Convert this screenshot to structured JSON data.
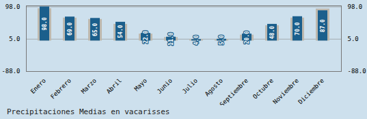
{
  "chart_data": {
    "type": "bar",
    "title": "Precipitaciones Medias en vacarisses",
    "categories": [
      "Enero",
      "Febrero",
      "Marzo",
      "Abril",
      "Mayo",
      "Junio",
      "Julio",
      "Agosto",
      "Septiembre",
      "Octubre",
      "Noviembre",
      "Diciembre"
    ],
    "series": [
      {
        "color": "#bdb8ae",
        "values": [
          93,
          66,
          62,
          48,
          20,
          10,
          4,
          4,
          17,
          44,
          66,
          92
        ]
      },
      {
        "color": "#1b5f8c",
        "values": [
          98,
          69,
          65,
          54,
          22,
          11,
          4,
          5,
          20,
          48,
          70,
          87
        ],
        "value_labels": [
          "98.0",
          "69.0",
          "65.0",
          "54.0",
          "22.0",
          "11.0",
          "4.0",
          "5.0",
          "20.0",
          "48.0",
          "70.0",
          "87.0"
        ]
      }
    ],
    "ylim": [
      -88,
      101
    ],
    "yticks": [
      {
        "value": -88,
        "label": "-88.0"
      },
      {
        "value": 5,
        "label": "5.0"
      },
      {
        "value": 98,
        "label": "98.0"
      }
    ],
    "grid": true,
    "data_labels": true
  }
}
